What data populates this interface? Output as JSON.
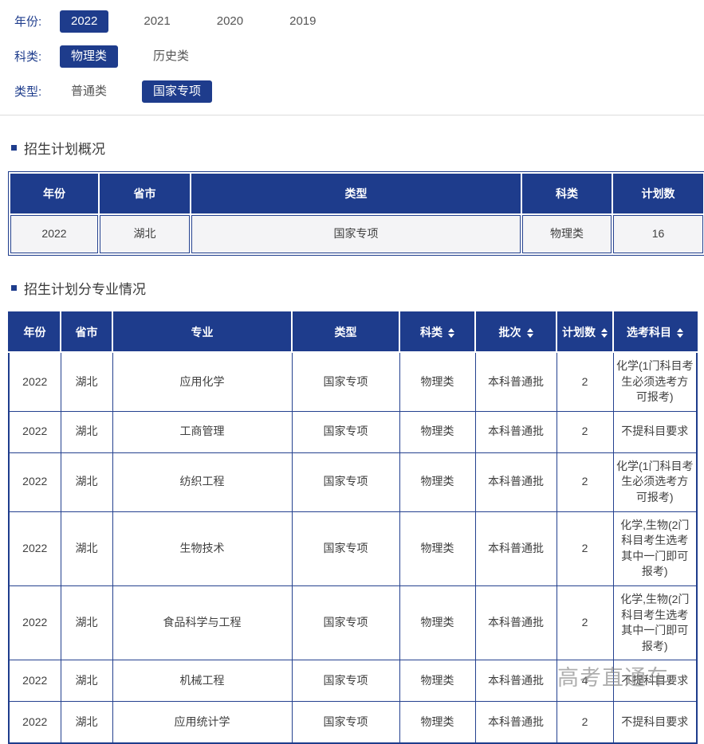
{
  "filters": [
    {
      "label": "年份:",
      "options": [
        {
          "text": "2022",
          "selected": true
        },
        {
          "text": "2021",
          "selected": false
        },
        {
          "text": "2020",
          "selected": false
        },
        {
          "text": "2019",
          "selected": false
        }
      ]
    },
    {
      "label": "科类:",
      "options": [
        {
          "text": "物理类",
          "selected": true
        },
        {
          "text": "历史类",
          "selected": false
        }
      ]
    },
    {
      "label": "类型:",
      "options": [
        {
          "text": "普通类",
          "selected": false
        },
        {
          "text": "国家专项",
          "selected": true
        }
      ]
    }
  ],
  "overview": {
    "title": "招生计划概况",
    "table": {
      "headers": [
        {
          "label": "年份",
          "sortable": false
        },
        {
          "label": "省市",
          "sortable": false
        },
        {
          "label": "类型",
          "sortable": false
        },
        {
          "label": "科类",
          "sortable": false
        },
        {
          "label": "计划数",
          "sortable": false
        }
      ],
      "rows": [
        [
          "2022",
          "湖北",
          "国家专项",
          "物理类",
          "16"
        ]
      ]
    }
  },
  "majors": {
    "title": "招生计划分专业情况",
    "table": {
      "headers": [
        {
          "label": "年份",
          "sortable": false
        },
        {
          "label": "省市",
          "sortable": false
        },
        {
          "label": "专业",
          "sortable": false
        },
        {
          "label": "类型",
          "sortable": false
        },
        {
          "label": "科类",
          "sortable": true
        },
        {
          "label": "批次",
          "sortable": true
        },
        {
          "label": "计划数",
          "sortable": true
        },
        {
          "label": "选考科目",
          "sortable": true
        }
      ],
      "rows": [
        [
          "2022",
          "湖北",
          "应用化学",
          "国家专项",
          "物理类",
          "本科普通批",
          "2",
          "化学(1门科目考生必须选考方可报考)"
        ],
        [
          "2022",
          "湖北",
          "工商管理",
          "国家专项",
          "物理类",
          "本科普通批",
          "2",
          "不提科目要求"
        ],
        [
          "2022",
          "湖北",
          "纺织工程",
          "国家专项",
          "物理类",
          "本科普通批",
          "2",
          "化学(1门科目考生必须选考方可报考)"
        ],
        [
          "2022",
          "湖北",
          "生物技术",
          "国家专项",
          "物理类",
          "本科普通批",
          "2",
          "化学,生物(2门科目考生选考其中一门即可报考)"
        ],
        [
          "2022",
          "湖北",
          "食品科学与工程",
          "国家专项",
          "物理类",
          "本科普通批",
          "2",
          "化学,生物(2门科目考生选考其中一门即可报考)"
        ],
        [
          "2022",
          "湖北",
          "机械工程",
          "国家专项",
          "物理类",
          "本科普通批",
          "4",
          "不提科目要求"
        ],
        [
          "2022",
          "湖北",
          "应用统计学",
          "国家专项",
          "物理类",
          "本科普通批",
          "2",
          "不提科目要求"
        ]
      ]
    }
  },
  "watermark": "高考直通车",
  "colors": {
    "navy": "#1e3c8c",
    "row_bg": "#f4f4f6",
    "text": "#404040",
    "muted": "#555555"
  }
}
